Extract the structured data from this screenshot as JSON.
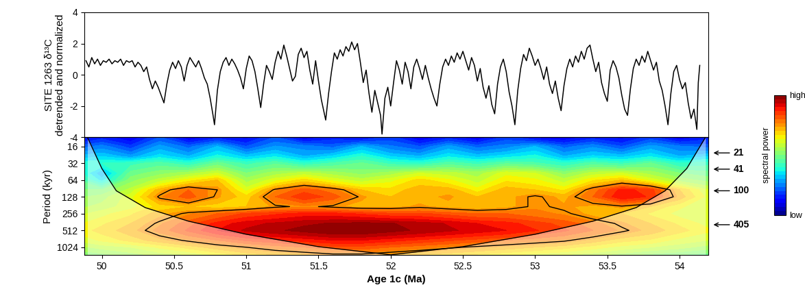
{
  "chart_data": [
    {
      "type": "line",
      "ylabel": "SITE 1263 δ¹³C\ndetrended and normalized",
      "color": "#000000",
      "tick_labels": "y",
      "xlim": [
        49.88,
        54.2
      ],
      "ylim": [
        -4,
        4
      ],
      "yticks": [
        -4,
        -2,
        0,
        2,
        4
      ],
      "x": [
        49.89,
        49.91,
        49.93,
        49.95,
        49.97,
        49.99,
        50.01,
        50.03,
        50.05,
        50.07,
        50.09,
        50.11,
        50.13,
        50.15,
        50.17,
        50.19,
        50.21,
        50.23,
        50.25,
        50.27,
        50.29,
        50.31,
        50.33,
        50.35,
        50.37,
        50.39,
        50.41,
        50.43,
        50.45,
        50.47,
        50.49,
        50.51,
        50.53,
        50.55,
        50.57,
        50.59,
        50.61,
        50.63,
        50.65,
        50.67,
        50.69,
        50.71,
        50.73,
        50.75,
        50.77,
        50.78,
        50.8,
        50.82,
        50.84,
        50.86,
        50.88,
        50.9,
        50.92,
        50.94,
        50.96,
        50.98,
        51.0,
        51.02,
        51.04,
        51.06,
        51.08,
        51.1,
        51.12,
        51.14,
        51.16,
        51.18,
        51.2,
        51.22,
        51.24,
        51.26,
        51.28,
        51.3,
        51.32,
        51.34,
        51.36,
        51.38,
        51.4,
        51.42,
        51.44,
        51.46,
        51.48,
        51.5,
        51.52,
        51.55,
        51.57,
        51.59,
        51.61,
        51.63,
        51.65,
        51.67,
        51.69,
        51.71,
        51.73,
        51.75,
        51.77,
        51.79,
        51.81,
        51.83,
        51.85,
        51.87,
        51.89,
        51.91,
        51.93,
        51.94,
        51.96,
        51.98,
        52.0,
        52.02,
        52.04,
        52.06,
        52.08,
        52.1,
        52.12,
        52.14,
        52.16,
        52.18,
        52.2,
        52.22,
        52.24,
        52.26,
        52.28,
        52.3,
        52.32,
        52.34,
        52.36,
        52.38,
        52.4,
        52.42,
        52.44,
        52.46,
        52.48,
        52.5,
        52.52,
        52.54,
        52.56,
        52.58,
        52.6,
        52.62,
        52.64,
        52.66,
        52.68,
        52.7,
        52.72,
        52.74,
        52.76,
        52.78,
        52.8,
        52.82,
        52.84,
        52.86,
        52.88,
        52.9,
        52.92,
        52.94,
        52.96,
        52.98,
        53.0,
        53.02,
        53.04,
        53.06,
        53.08,
        53.1,
        53.12,
        53.14,
        53.16,
        53.18,
        53.2,
        53.22,
        53.24,
        53.26,
        53.28,
        53.3,
        53.32,
        53.34,
        53.36,
        53.38,
        53.4,
        53.42,
        53.44,
        53.46,
        53.48,
        53.5,
        53.52,
        53.54,
        53.56,
        53.58,
        53.6,
        53.62,
        53.64,
        53.66,
        53.68,
        53.7,
        53.72,
        53.74,
        53.76,
        53.78,
        53.8,
        53.82,
        53.84,
        53.86,
        53.88,
        53.9,
        53.92,
        53.94,
        53.96,
        53.98,
        54.0,
        54.02,
        54.04,
        54.06,
        54.08,
        54.1,
        54.12,
        54.13,
        54.14
      ],
      "values": [
        0.9,
        0.5,
        1.1,
        0.7,
        1.0,
        0.6,
        0.9,
        0.8,
        1.0,
        0.7,
        0.9,
        0.8,
        1.0,
        0.6,
        0.9,
        0.8,
        0.9,
        0.5,
        0.8,
        0.6,
        0.2,
        0.5,
        -0.3,
        -0.9,
        -0.4,
        -0.8,
        -1.3,
        -1.8,
        -0.6,
        0.3,
        0.8,
        0.4,
        0.9,
        0.5,
        -0.4,
        0.6,
        1.1,
        0.8,
        0.5,
        0.9,
        0.4,
        -0.2,
        -0.6,
        -1.5,
        -2.6,
        -3.2,
        -1.0,
        0.2,
        0.8,
        1.1,
        0.6,
        1.0,
        0.7,
        0.3,
        -0.2,
        -0.9,
        0.4,
        1.2,
        0.9,
        0.2,
        -0.9,
        -2.1,
        -0.6,
        0.6,
        0.2,
        -0.3,
        0.8,
        1.5,
        1.0,
        1.9,
        1.2,
        0.4,
        -0.4,
        -0.1,
        1.3,
        1.7,
        1.1,
        1.5,
        0.3,
        -0.6,
        0.9,
        -0.4,
        -1.6,
        -2.9,
        -1.2,
        0.2,
        1.4,
        1.0,
        1.6,
        1.2,
        1.8,
        1.5,
        2.1,
        1.6,
        2.0,
        0.8,
        -0.5,
        0.3,
        -1.2,
        -2.4,
        -1.0,
        -1.8,
        -2.6,
        -3.8,
        -1.5,
        -0.8,
        -2.0,
        -0.5,
        0.9,
        0.3,
        -0.6,
        0.8,
        0.2,
        -0.9,
        0.5,
        1.0,
        0.4,
        -0.3,
        0.6,
        -0.2,
        -0.9,
        -1.5,
        -2.0,
        -0.6,
        0.5,
        1.0,
        0.6,
        1.2,
        0.8,
        1.4,
        1.0,
        1.5,
        0.9,
        0.3,
        1.1,
        0.6,
        -0.4,
        0.4,
        -0.8,
        -1.5,
        -0.7,
        -1.9,
        -2.5,
        -0.6,
        0.5,
        1.0,
        0.2,
        -1.1,
        -2.0,
        -3.2,
        -1.0,
        0.4,
        1.3,
        0.9,
        1.7,
        1.2,
        0.6,
        1.0,
        0.4,
        -0.3,
        0.5,
        -0.6,
        -1.2,
        -0.4,
        -1.5,
        -2.3,
        -0.7,
        0.4,
        1.0,
        0.5,
        1.2,
        0.8,
        1.5,
        1.0,
        1.7,
        1.9,
        1.0,
        0.2,
        0.8,
        -0.5,
        -1.2,
        -1.7,
        0.3,
        0.9,
        0.5,
        -0.2,
        -1.3,
        -2.2,
        -2.6,
        -0.9,
        0.4,
        1.0,
        0.6,
        1.2,
        0.8,
        1.5,
        0.9,
        0.3,
        0.8,
        -0.4,
        -1.0,
        -2.0,
        -3.2,
        -1.2,
        0.2,
        0.6,
        -0.3,
        -0.9,
        -0.5,
        -1.8,
        -2.8,
        -2.2,
        -3.5,
        -0.5,
        0.6
      ]
    },
    {
      "type": "heatmap",
      "xlabel": "Age 1c (Ma)",
      "ylabel": "Period (kyr)",
      "log": "y",
      "xlim": [
        49.88,
        54.2
      ],
      "xticks": [
        50,
        50.5,
        51,
        51.5,
        52,
        52.5,
        53,
        53.5,
        54
      ],
      "ylim": [
        1400,
        11
      ],
      "yticks": [
        16,
        32,
        64,
        128,
        256,
        512,
        1024
      ],
      "cells": {
        "x": [
          49.8,
          50.0,
          50.2,
          50.4,
          50.6,
          50.8,
          51.0,
          51.2,
          51.4,
          51.6,
          51.8,
          52.0,
          52.2,
          52.4,
          52.6,
          52.8,
          53.0,
          53.2,
          53.4,
          53.6,
          53.8,
          54.0,
          54.2,
          54.4
        ],
        "y": [
          11,
          16,
          24,
          32,
          48,
          64,
          96,
          128,
          192,
          256,
          384,
          512,
          768,
          1024,
          1400
        ],
        "values": [
          [
            0.1,
            0.15,
            0.1,
            0.2,
            0.1,
            0.15,
            0.12,
            0.2,
            0.1,
            0.15,
            0.12,
            0.18,
            0.1,
            0.15,
            0.1,
            0.18,
            0.12,
            0.1,
            0.15,
            0.12,
            0.18,
            0.1,
            0.15,
            0.12
          ],
          [
            0.2,
            0.25,
            0.18,
            0.28,
            0.22,
            0.3,
            0.2,
            0.27,
            0.25,
            0.22,
            0.3,
            0.24,
            0.2,
            0.28,
            0.22,
            0.25,
            0.3,
            0.22,
            0.26,
            0.2,
            0.28,
            0.24,
            0.22,
            0.25
          ],
          [
            0.3,
            0.33,
            0.28,
            0.35,
            0.3,
            0.38,
            0.32,
            0.36,
            0.3,
            0.34,
            0.4,
            0.33,
            0.3,
            0.36,
            0.32,
            0.35,
            0.38,
            0.3,
            0.34,
            0.32,
            0.36,
            0.3,
            0.33,
            0.3
          ],
          [
            0.38,
            0.4,
            0.42,
            0.45,
            0.4,
            0.48,
            0.42,
            0.46,
            0.4,
            0.44,
            0.47,
            0.42,
            0.4,
            0.45,
            0.42,
            0.46,
            0.44,
            0.4,
            0.45,
            0.42,
            0.47,
            0.4,
            0.42,
            0.4
          ],
          [
            0.45,
            0.3,
            0.48,
            0.52,
            0.55,
            0.6,
            0.5,
            0.55,
            0.58,
            0.55,
            0.52,
            0.55,
            0.6,
            0.58,
            0.55,
            0.62,
            0.6,
            0.52,
            0.58,
            0.6,
            0.55,
            0.5,
            0.48,
            0.45
          ],
          [
            0.48,
            0.35,
            0.52,
            0.58,
            0.65,
            0.7,
            0.55,
            0.62,
            0.68,
            0.62,
            0.58,
            0.62,
            0.68,
            0.64,
            0.58,
            0.66,
            0.64,
            0.58,
            0.66,
            0.7,
            0.62,
            0.55,
            0.52,
            0.5
          ],
          [
            0.5,
            0.5,
            0.58,
            0.72,
            0.8,
            0.75,
            0.62,
            0.76,
            0.82,
            0.78,
            0.7,
            0.68,
            0.72,
            0.72,
            0.65,
            0.72,
            0.7,
            0.66,
            0.78,
            0.88,
            0.85,
            0.7,
            0.6,
            0.55
          ],
          [
            0.52,
            0.55,
            0.62,
            0.76,
            0.82,
            0.74,
            0.68,
            0.8,
            0.86,
            0.82,
            0.74,
            0.7,
            0.72,
            0.74,
            0.7,
            0.72,
            0.76,
            0.72,
            0.8,
            0.9,
            0.86,
            0.72,
            0.62,
            0.58
          ],
          [
            0.55,
            0.58,
            0.62,
            0.68,
            0.7,
            0.68,
            0.7,
            0.74,
            0.76,
            0.74,
            0.72,
            0.72,
            0.74,
            0.72,
            0.7,
            0.72,
            0.76,
            0.74,
            0.72,
            0.74,
            0.7,
            0.64,
            0.6,
            0.56
          ],
          [
            0.58,
            0.62,
            0.66,
            0.72,
            0.76,
            0.8,
            0.84,
            0.86,
            0.88,
            0.88,
            0.86,
            0.84,
            0.84,
            0.82,
            0.8,
            0.8,
            0.78,
            0.76,
            0.72,
            0.7,
            0.66,
            0.62,
            0.6,
            0.58
          ],
          [
            0.62,
            0.66,
            0.7,
            0.76,
            0.82,
            0.88,
            0.92,
            0.94,
            0.96,
            0.97,
            0.98,
            0.97,
            0.95,
            0.93,
            0.9,
            0.88,
            0.85,
            0.82,
            0.78,
            0.74,
            0.7,
            0.66,
            0.62,
            0.6
          ],
          [
            0.64,
            0.68,
            0.72,
            0.78,
            0.84,
            0.9,
            0.94,
            0.96,
            0.98,
            1.0,
            1.0,
            0.98,
            0.96,
            0.94,
            0.92,
            0.9,
            0.87,
            0.84,
            0.8,
            0.76,
            0.72,
            0.68,
            0.64,
            0.62
          ],
          [
            0.6,
            0.64,
            0.68,
            0.72,
            0.76,
            0.8,
            0.84,
            0.86,
            0.88,
            0.9,
            0.9,
            0.88,
            0.86,
            0.84,
            0.82,
            0.8,
            0.78,
            0.76,
            0.72,
            0.68,
            0.66,
            0.62,
            0.6,
            0.58
          ],
          [
            0.55,
            0.58,
            0.6,
            0.64,
            0.68,
            0.72,
            0.75,
            0.78,
            0.8,
            0.82,
            0.82,
            0.8,
            0.78,
            0.76,
            0.74,
            0.72,
            0.7,
            0.68,
            0.65,
            0.62,
            0.6,
            0.58,
            0.55,
            0.52
          ],
          [
            0.5,
            0.52,
            0.55,
            0.58,
            0.6,
            0.64,
            0.68,
            0.7,
            0.72,
            0.74,
            0.74,
            0.72,
            0.7,
            0.68,
            0.66,
            0.64,
            0.62,
            0.6,
            0.58,
            0.55,
            0.52,
            0.5,
            0.48,
            0.46
          ]
        ]
      },
      "significance_level": 0.75,
      "cone_of_influence": {
        "x": [
          49.9,
          50.0,
          50.1,
          50.3,
          50.6,
          51.0,
          51.5,
          52.0,
          52.5,
          53.0,
          53.4,
          53.7,
          53.9,
          54.05,
          54.18
        ],
        "y": [
          11,
          40,
          100,
          200,
          350,
          600,
          1000,
          1400,
          1000,
          600,
          350,
          200,
          100,
          40,
          11
        ]
      },
      "period_markers": [
        21,
        41,
        100,
        405
      ],
      "colorbar": {
        "label": "spectral power",
        "range": [
          0,
          1
        ],
        "ticks": [
          {
            "value": 0,
            "label": "low"
          },
          {
            "value": 1,
            "label": "high"
          }
        ]
      }
    }
  ]
}
